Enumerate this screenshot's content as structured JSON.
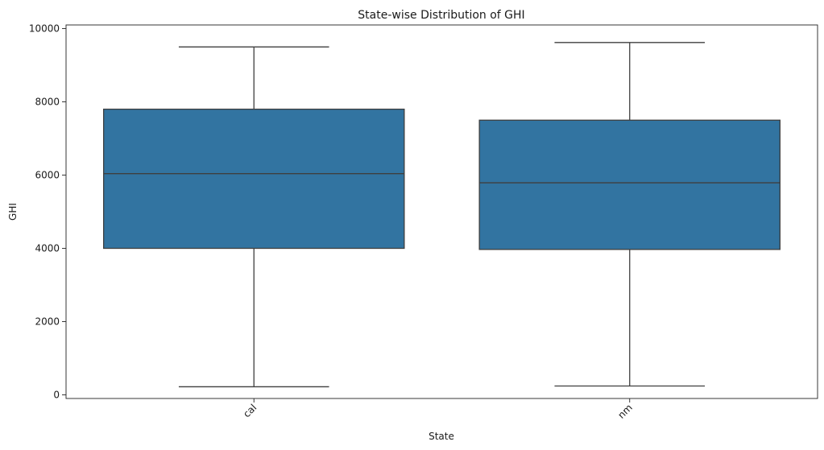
{
  "chart_data": {
    "type": "box",
    "title": "State-wise Distribution of GHI",
    "xlabel": "State",
    "ylabel": "GHI",
    "ylim": [
      -100,
      10100
    ],
    "yticks": [
      0,
      2000,
      4000,
      6000,
      8000,
      10000
    ],
    "grid": false,
    "legend": "none",
    "box_color": "#3274a1",
    "line_color": "#3f3f3f",
    "categories": [
      "cal",
      "nm"
    ],
    "boxes": [
      {
        "category": "cal",
        "whisker_low": 220,
        "q1": 4000,
        "median": 6040,
        "q3": 7800,
        "whisker_high": 9500
      },
      {
        "category": "nm",
        "whisker_low": 240,
        "q1": 3970,
        "median": 5790,
        "q3": 7500,
        "whisker_high": 9620
      }
    ]
  }
}
